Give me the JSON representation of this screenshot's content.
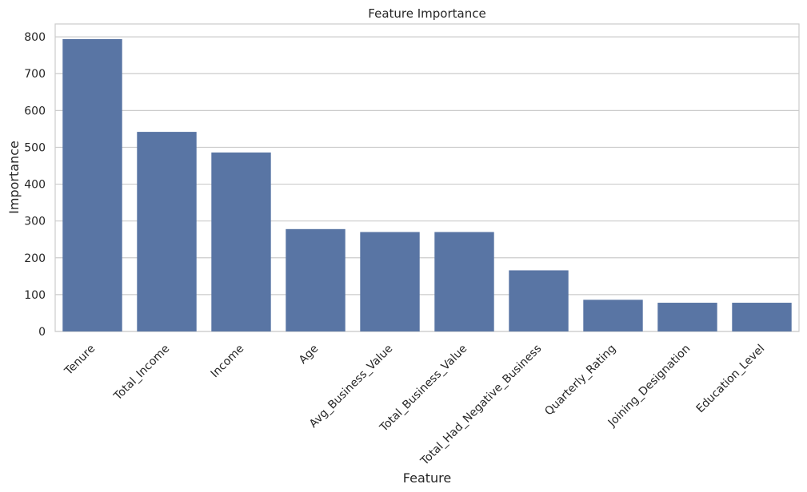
{
  "chart_data": {
    "type": "bar",
    "title": "Feature Importance",
    "xlabel": "Feature",
    "ylabel": "Importance",
    "categories": [
      "Tenure",
      "Total_Income",
      "Income",
      "Age",
      "Avg_Business_Value",
      "Total_Business_Value",
      "Total_Had_Negative_Business",
      "Quarterly_Rating",
      "Joining_Designation",
      "Education_Level"
    ],
    "values": [
      794,
      542,
      486,
      278,
      270,
      270,
      166,
      86,
      78,
      78
    ],
    "ylim": [
      0,
      835
    ],
    "yticks": [
      0,
      100,
      200,
      300,
      400,
      500,
      600,
      700,
      800
    ],
    "grid": true,
    "bar_color": "#5975a4",
    "grid_color": "#cccccc",
    "frame_color": "#cccccc"
  }
}
